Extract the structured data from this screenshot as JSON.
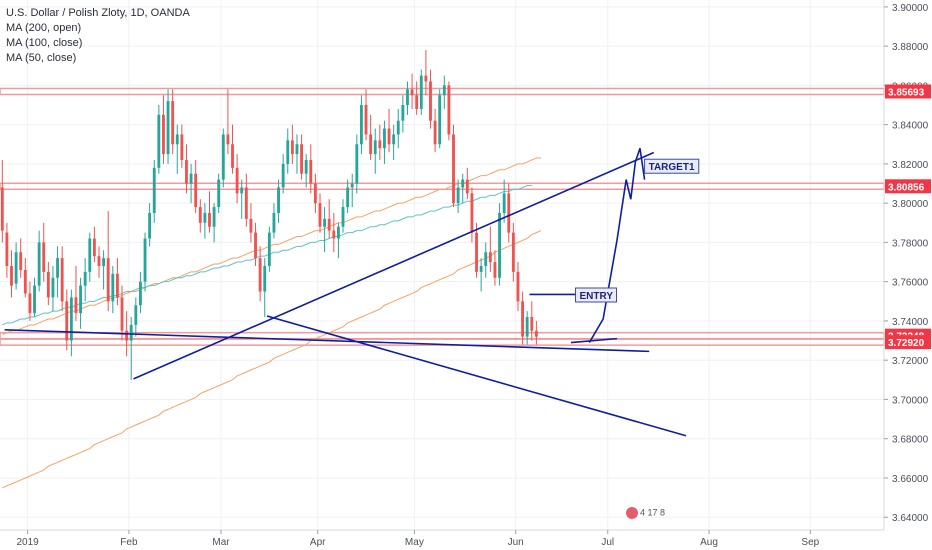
{
  "legend": {
    "symbol": "U.S. Dollar / Polish Zloty, 1D, OANDA",
    "ma1": "MA (200, open)",
    "ma2": "MA (100, close)",
    "ma3": "MA (50, close)"
  },
  "colors": {
    "up": "#26a69a",
    "down": "#ef5350",
    "ma200": "#f7a266",
    "ma100": "#f7a266",
    "ma50": "#5ec2c4",
    "trend": "#0f1ea0",
    "hline": "#f29a9a",
    "grid": "#eef0f3",
    "axis_text": "#4a4f5a",
    "price_tag": "#f23645"
  },
  "badge": {
    "text": "4 17 8"
  },
  "chart_data": {
    "type": "candlestick",
    "x_axis": {
      "ticks": [
        {
          "label": "2019",
          "t": 6
        },
        {
          "label": "Feb",
          "t": 28
        },
        {
          "label": "Mar",
          "t": 48
        },
        {
          "label": "Apr",
          "t": 69
        },
        {
          "label": "May",
          "t": 90
        },
        {
          "label": "Jun",
          "t": 112
        },
        {
          "label": "Jul",
          "t": 132
        },
        {
          "label": "Aug",
          "t": 154
        },
        {
          "label": "Sep",
          "t": 176
        }
      ],
      "range": [
        0,
        192
      ]
    },
    "y_axis": {
      "range": [
        3.6335,
        3.9035
      ],
      "ticks": [
        "3.64000",
        "3.66000",
        "3.68000",
        "3.70000",
        "3.72000",
        "3.74000",
        "3.76000",
        "3.78000",
        "3.80000",
        "3.82000",
        "3.84000",
        "3.86000",
        "3.88000",
        "3.90000"
      ]
    },
    "horizontal_levels": [
      {
        "value": 3.8569,
        "label": "3.85693"
      },
      {
        "value": 3.8086,
        "label": "3.80856"
      },
      {
        "value": 3.7325,
        "label": "3.73248"
      },
      {
        "value": 3.7292,
        "label": "3.72920"
      }
    ],
    "candles": [
      [
        3.808,
        3.822,
        3.78,
        3.786
      ],
      [
        3.785,
        3.79,
        3.762,
        3.768
      ],
      [
        3.768,
        3.776,
        3.752,
        3.758
      ],
      [
        3.759,
        3.78,
        3.756,
        3.775
      ],
      [
        3.775,
        3.782,
        3.762,
        3.766
      ],
      [
        3.766,
        3.772,
        3.752,
        3.754
      ],
      [
        3.754,
        3.76,
        3.74,
        3.744
      ],
      [
        3.744,
        3.762,
        3.742,
        3.758
      ],
      [
        3.758,
        3.786,
        3.755,
        3.78
      ],
      [
        3.78,
        3.79,
        3.76,
        3.765
      ],
      [
        3.765,
        3.77,
        3.748,
        3.752
      ],
      [
        3.752,
        3.768,
        3.745,
        3.762
      ],
      [
        3.762,
        3.778,
        3.752,
        3.772
      ],
      [
        3.772,
        3.778,
        3.745,
        3.75
      ],
      [
        3.75,
        3.756,
        3.725,
        3.73
      ],
      [
        3.73,
        3.756,
        3.722,
        3.752
      ],
      [
        3.752,
        3.768,
        3.74,
        3.744
      ],
      [
        3.744,
        3.762,
        3.736,
        3.758
      ],
      [
        3.758,
        3.772,
        3.75,
        3.765
      ],
      [
        3.765,
        3.785,
        3.76,
        3.782
      ],
      [
        3.782,
        3.788,
        3.77,
        3.773
      ],
      [
        3.773,
        3.778,
        3.762,
        3.768
      ],
      [
        3.768,
        3.776,
        3.756,
        3.772
      ],
      [
        3.772,
        3.796,
        3.745,
        3.75
      ],
      [
        3.75,
        3.768,
        3.744,
        3.764
      ],
      [
        3.764,
        3.772,
        3.748,
        3.752
      ],
      [
        3.752,
        3.758,
        3.73,
        3.735
      ],
      [
        3.735,
        3.745,
        3.722,
        3.73
      ],
      [
        3.73,
        3.742,
        3.71,
        3.738
      ],
      [
        3.738,
        3.752,
        3.732,
        3.748
      ],
      [
        3.748,
        3.765,
        3.744,
        3.76
      ],
      [
        3.76,
        3.785,
        3.755,
        3.782
      ],
      [
        3.782,
        3.8,
        3.778,
        3.795
      ],
      [
        3.795,
        3.822,
        3.79,
        3.818
      ],
      [
        3.818,
        3.85,
        3.815,
        3.845
      ],
      [
        3.845,
        3.855,
        3.82,
        3.825
      ],
      [
        3.825,
        3.858,
        3.82,
        3.852
      ],
      [
        3.852,
        3.858,
        3.825,
        3.83
      ],
      [
        3.83,
        3.84,
        3.815,
        3.835
      ],
      [
        3.835,
        3.84,
        3.818,
        3.822
      ],
      [
        3.822,
        3.83,
        3.805,
        3.81
      ],
      [
        3.81,
        3.82,
        3.8,
        3.815
      ],
      [
        3.815,
        3.822,
        3.795,
        3.798
      ],
      [
        3.798,
        3.802,
        3.785,
        3.79
      ],
      [
        3.79,
        3.8,
        3.782,
        3.795
      ],
      [
        3.795,
        3.806,
        3.785,
        3.788
      ],
      [
        3.788,
        3.8,
        3.78,
        3.798
      ],
      [
        3.798,
        3.815,
        3.795,
        3.812
      ],
      [
        3.812,
        3.838,
        3.808,
        3.835
      ],
      [
        3.835,
        3.858,
        3.825,
        3.83
      ],
      [
        3.83,
        3.84,
        3.815,
        3.818
      ],
      [
        3.818,
        3.825,
        3.8,
        3.805
      ],
      [
        3.805,
        3.812,
        3.792,
        3.808
      ],
      [
        3.808,
        3.815,
        3.788,
        3.792
      ],
      [
        3.792,
        3.8,
        3.78,
        3.785
      ],
      [
        3.785,
        3.79,
        3.768,
        3.772
      ],
      [
        3.772,
        3.778,
        3.75,
        3.755
      ],
      [
        3.755,
        3.772,
        3.742,
        3.768
      ],
      [
        3.768,
        3.788,
        3.765,
        3.785
      ],
      [
        3.785,
        3.8,
        3.782,
        3.795
      ],
      [
        3.795,
        3.812,
        3.79,
        3.808
      ],
      [
        3.808,
        3.825,
        3.805,
        3.82
      ],
      [
        3.82,
        3.838,
        3.815,
        3.832
      ],
      [
        3.832,
        3.84,
        3.82,
        3.825
      ],
      [
        3.825,
        3.835,
        3.815,
        3.83
      ],
      [
        3.83,
        3.835,
        3.812,
        3.815
      ],
      [
        3.815,
        3.825,
        3.808,
        3.822
      ],
      [
        3.822,
        3.83,
        3.805,
        3.81
      ],
      [
        3.81,
        3.815,
        3.795,
        3.8
      ],
      [
        3.8,
        3.805,
        3.785,
        3.788
      ],
      [
        3.788,
        3.798,
        3.775,
        3.792
      ],
      [
        3.792,
        3.802,
        3.782,
        3.786
      ],
      [
        3.786,
        3.795,
        3.775,
        3.782
      ],
      [
        3.782,
        3.79,
        3.772,
        3.788
      ],
      [
        3.788,
        3.802,
        3.785,
        3.798
      ],
      [
        3.798,
        3.812,
        3.795,
        3.808
      ],
      [
        3.808,
        3.815,
        3.798,
        3.81
      ],
      [
        3.81,
        3.835,
        3.805,
        3.83
      ],
      [
        3.83,
        3.855,
        3.825,
        3.85
      ],
      [
        3.85,
        3.858,
        3.832,
        3.835
      ],
      [
        3.835,
        3.845,
        3.822,
        3.825
      ],
      [
        3.825,
        3.838,
        3.815,
        3.832
      ],
      [
        3.832,
        3.84,
        3.822,
        3.828
      ],
      [
        3.828,
        3.842,
        3.82,
        3.838
      ],
      [
        3.838,
        3.848,
        3.826,
        3.83
      ],
      [
        3.83,
        3.84,
        3.822,
        3.835
      ],
      [
        3.835,
        3.848,
        3.828,
        3.842
      ],
      [
        3.842,
        3.855,
        3.836,
        3.85
      ],
      [
        3.85,
        3.862,
        3.845,
        3.858
      ],
      [
        3.858,
        3.866,
        3.848,
        3.855
      ],
      [
        3.855,
        3.862,
        3.845,
        3.848
      ],
      [
        3.848,
        3.868,
        3.845,
        3.865
      ],
      [
        3.865,
        3.878,
        3.855,
        3.862
      ],
      [
        3.862,
        3.868,
        3.838,
        3.842
      ],
      [
        3.842,
        3.848,
        3.826,
        3.83
      ],
      [
        3.83,
        3.858,
        3.828,
        3.855
      ],
      [
        3.855,
        3.865,
        3.848,
        3.86
      ],
      [
        3.86,
        3.862,
        3.832,
        3.835
      ],
      [
        3.835,
        3.84,
        3.798,
        3.8
      ],
      [
        3.8,
        3.812,
        3.795,
        3.808
      ],
      [
        3.808,
        3.815,
        3.8,
        3.812
      ],
      [
        3.812,
        3.818,
        3.802,
        3.805
      ],
      [
        3.805,
        3.808,
        3.78,
        3.785
      ],
      [
        3.785,
        3.79,
        3.762,
        3.765
      ],
      [
        3.765,
        3.772,
        3.755,
        3.768
      ],
      [
        3.768,
        3.78,
        3.762,
        3.775
      ],
      [
        3.775,
        3.788,
        3.765,
        3.77
      ],
      [
        3.77,
        3.776,
        3.758,
        3.762
      ],
      [
        3.762,
        3.8,
        3.758,
        3.795
      ],
      [
        3.795,
        3.812,
        3.79,
        3.805
      ],
      [
        3.805,
        3.81,
        3.78,
        3.785
      ],
      [
        3.785,
        3.79,
        3.76,
        3.765
      ],
      [
        3.765,
        3.77,
        3.745,
        3.75
      ],
      [
        3.75,
        3.755,
        3.728,
        3.732
      ],
      [
        3.732,
        3.745,
        3.728,
        3.742
      ],
      [
        3.742,
        3.75,
        3.73,
        3.735
      ],
      [
        3.735,
        3.74,
        3.728,
        3.732
      ]
    ],
    "ma200_open": [
      3.655,
      3.656,
      3.657,
      3.658,
      3.659,
      3.66,
      3.661,
      3.662,
      3.663,
      3.664,
      3.666,
      3.667,
      3.668,
      3.669,
      3.67,
      3.671,
      3.672,
      3.673,
      3.674,
      3.675,
      3.677,
      3.678,
      3.679,
      3.68,
      3.681,
      3.682,
      3.683,
      3.685,
      3.686,
      3.687,
      3.688,
      3.689,
      3.69,
      3.691,
      3.692,
      3.694,
      3.695,
      3.696,
      3.697,
      3.698,
      3.699,
      3.7,
      3.701,
      3.703,
      3.704,
      3.705,
      3.706,
      3.707,
      3.708,
      3.709,
      3.71,
      3.712,
      3.713,
      3.714,
      3.715,
      3.716,
      3.717,
      3.718,
      3.719,
      3.721,
      3.722,
      3.723,
      3.724,
      3.725,
      3.726,
      3.727,
      3.728,
      3.73,
      3.731,
      3.732,
      3.733,
      3.734,
      3.735,
      3.736,
      3.737,
      3.739,
      3.74,
      3.741,
      3.742,
      3.743,
      3.744,
      3.745,
      3.746,
      3.748,
      3.749,
      3.75,
      3.751,
      3.752,
      3.753,
      3.754,
      3.755,
      3.757,
      3.758,
      3.759,
      3.76,
      3.761,
      3.762,
      3.763,
      3.764,
      3.766,
      3.767,
      3.768,
      3.769,
      3.77,
      3.771,
      3.772,
      3.773,
      3.775,
      3.776,
      3.777,
      3.778,
      3.779,
      3.78,
      3.781,
      3.782,
      3.784,
      3.785,
      3.786
    ],
    "ma100_close": [
      3.733,
      3.734,
      3.735,
      3.735,
      3.736,
      3.737,
      3.738,
      3.738,
      3.739,
      3.74,
      3.741,
      3.741,
      3.742,
      3.743,
      3.744,
      3.745,
      3.745,
      3.746,
      3.747,
      3.748,
      3.748,
      3.749,
      3.75,
      3.751,
      3.752,
      3.752,
      3.753,
      3.754,
      3.755,
      3.755,
      3.756,
      3.757,
      3.758,
      3.759,
      3.759,
      3.76,
      3.761,
      3.762,
      3.762,
      3.763,
      3.764,
      3.765,
      3.765,
      3.766,
      3.767,
      3.768,
      3.769,
      3.769,
      3.77,
      3.771,
      3.772,
      3.772,
      3.773,
      3.774,
      3.775,
      3.776,
      3.776,
      3.777,
      3.778,
      3.779,
      3.779,
      3.78,
      3.781,
      3.782,
      3.783,
      3.783,
      3.784,
      3.785,
      3.786,
      3.786,
      3.787,
      3.788,
      3.789,
      3.79,
      3.79,
      3.791,
      3.792,
      3.793,
      3.793,
      3.794,
      3.795,
      3.796,
      3.796,
      3.797,
      3.798,
      3.799,
      3.8,
      3.8,
      3.801,
      3.802,
      3.803,
      3.803,
      3.804,
      3.805,
      3.806,
      3.807,
      3.807,
      3.808,
      3.809,
      3.81,
      3.81,
      3.811,
      3.812,
      3.813,
      3.814,
      3.814,
      3.815,
      3.816,
      3.817,
      3.817,
      3.818,
      3.819,
      3.82,
      3.82,
      3.821,
      3.822,
      3.823,
      3.823
    ],
    "ma50_close": [
      3.738,
      3.739,
      3.739,
      3.74,
      3.741,
      3.741,
      3.742,
      3.742,
      3.743,
      3.744,
      3.744,
      3.745,
      3.745,
      3.746,
      3.747,
      3.747,
      3.748,
      3.749,
      3.749,
      3.75,
      3.75,
      3.751,
      3.752,
      3.752,
      3.753,
      3.753,
      3.754,
      3.755,
      3.755,
      3.756,
      3.757,
      3.757,
      3.758,
      3.758,
      3.759,
      3.76,
      3.76,
      3.761,
      3.762,
      3.762,
      3.763,
      3.763,
      3.764,
      3.765,
      3.765,
      3.766,
      3.767,
      3.767,
      3.768,
      3.768,
      3.769,
      3.77,
      3.77,
      3.771,
      3.771,
      3.772,
      3.773,
      3.773,
      3.774,
      3.775,
      3.775,
      3.776,
      3.776,
      3.777,
      3.778,
      3.778,
      3.779,
      3.78,
      3.78,
      3.781,
      3.781,
      3.782,
      3.783,
      3.783,
      3.784,
      3.785,
      3.785,
      3.786,
      3.786,
      3.787,
      3.788,
      3.788,
      3.789,
      3.789,
      3.79,
      3.791,
      3.791,
      3.792,
      3.793,
      3.793,
      3.794,
      3.794,
      3.795,
      3.796,
      3.796,
      3.797,
      3.798,
      3.798,
      3.799,
      3.799,
      3.8,
      3.801,
      3.801,
      3.802,
      3.803,
      3.803,
      3.804,
      3.804,
      3.805,
      3.806,
      3.806,
      3.807,
      3.807,
      3.808,
      3.809,
      3.809
    ],
    "annotations": [
      {
        "text": "TARGET1",
        "t": 140,
        "y": 3.8178
      },
      {
        "text": "ENTRY",
        "t": 125,
        "y": 3.7522
      }
    ],
    "trendlines": [
      {
        "from": [
          1,
          3.7355
        ],
        "to": [
          141,
          3.7245
        ]
      },
      {
        "from": [
          29,
          3.7105
        ],
        "to": [
          142,
          3.8258
        ]
      },
      {
        "from": [
          58,
          3.7425
        ],
        "to": [
          149,
          3.6815
        ]
      },
      {
        "from": [
          115,
          3.7535
        ],
        "to": [
          127,
          3.7535
        ]
      },
      {
        "from": [
          124,
          3.729
        ],
        "to": [
          134,
          3.731
        ]
      }
    ],
    "projection": [
      [
        128,
        3.729
      ],
      [
        131,
        3.741
      ],
      [
        134,
        3.781
      ],
      [
        136,
        3.812
      ],
      [
        137,
        3.802
      ],
      [
        138,
        3.821
      ],
      [
        139,
        3.828
      ],
      [
        140,
        3.812
      ]
    ]
  }
}
